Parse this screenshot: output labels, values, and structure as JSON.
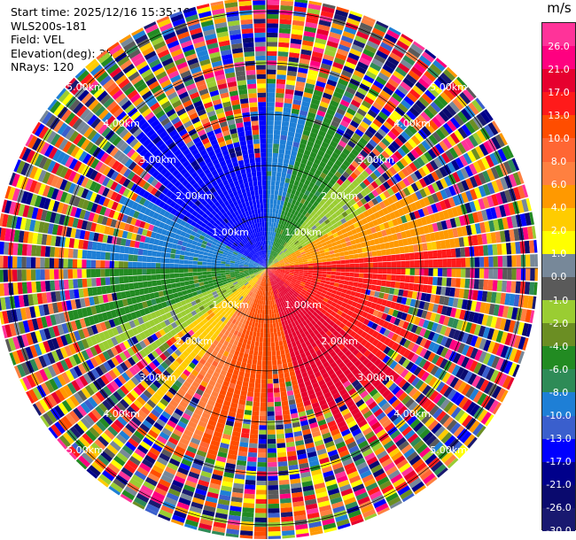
{
  "header": {
    "start_time": "Start time: 2025/12/16 15:35:19",
    "instrument": "WLS200s-181",
    "field": "Field: VEL",
    "elevation": "Elevation(deg): 35.00",
    "nrays": "NRays: 120"
  },
  "colorbar": {
    "unit": "m/s",
    "ticks": [
      "26.0",
      "21.0",
      "17.0",
      "13.0",
      "10.0",
      "8.0",
      "6.0",
      "4.0",
      "2.0",
      "1.0",
      "0.0",
      "-1.0",
      "-2.0",
      "-4.0",
      "-6.0",
      "-8.0",
      "-10.0",
      "-13.0",
      "-17.0",
      "-21.0",
      "-26.0",
      "-30.0"
    ],
    "colors": [
      "#ff3399",
      "#ff0080",
      "#e6002e",
      "#ff1a1a",
      "#ff4d00",
      "#ff6633",
      "#ff8040",
      "#ff9900",
      "#ffcc00",
      "#ffff00",
      "#778899",
      "#5a5a5a",
      "#9acd32",
      "#6b8e23",
      "#228b22",
      "#2e8b57",
      "#1e7fd6",
      "#3a5fcd",
      "#0000ff",
      "#00008b",
      "#0a0a6e",
      "#191970"
    ]
  },
  "chart_data": {
    "type": "polar-ppi",
    "field": "VEL",
    "units": "m/s",
    "nrays": 120,
    "elevation_deg": 35.0,
    "range_ring_labels": [
      "1.00km",
      "2.00km",
      "3.00km",
      "4.00km",
      "5.00km"
    ],
    "max_range_km": 5.5,
    "velocity_sectors": [
      {
        "azimuth_from": 300,
        "azimuth_to": 360,
        "velocity": -17.0
      },
      {
        "azimuth_from": 0,
        "azimuth_to": 15,
        "velocity": -10.0
      },
      {
        "azimuth_from": 15,
        "azimuth_to": 40,
        "velocity": -6.0
      },
      {
        "azimuth_from": 40,
        "azimuth_to": 60,
        "velocity": -2.0
      },
      {
        "azimuth_from": 60,
        "azimuth_to": 85,
        "velocity": 4.0
      },
      {
        "azimuth_from": 85,
        "azimuth_to": 130,
        "velocity": 13.0
      },
      {
        "azimuth_from": 130,
        "azimuth_to": 165,
        "velocity": 17.0
      },
      {
        "azimuth_from": 165,
        "azimuth_to": 200,
        "velocity": 10.0
      },
      {
        "azimuth_from": 200,
        "azimuth_to": 215,
        "velocity": 6.0
      },
      {
        "azimuth_from": 215,
        "azimuth_to": 235,
        "velocity": 2.0
      },
      {
        "azimuth_from": 235,
        "azimuth_to": 250,
        "velocity": -2.0
      },
      {
        "azimuth_from": 250,
        "azimuth_to": 270,
        "velocity": -6.0
      },
      {
        "azimuth_from": 270,
        "azimuth_to": 300,
        "velocity": -10.0
      }
    ]
  }
}
